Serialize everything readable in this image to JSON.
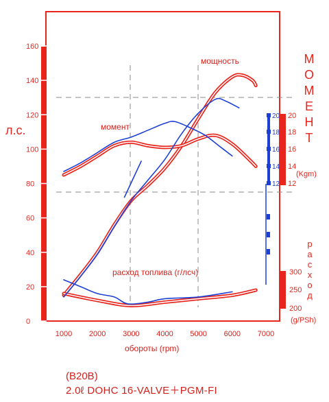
{
  "chart_data": {
    "type": "line",
    "x_label": "обороты (rpm)",
    "x_ticks": [
      1000,
      2000,
      3000,
      4000,
      5000,
      6000,
      7000
    ],
    "xlim": [
      500,
      7500
    ],
    "left_axis": {
      "label": "л.с.",
      "ticks": [
        0,
        20,
        40,
        60,
        80,
        100,
        120,
        140,
        160
      ],
      "ylim": [
        0,
        175
      ]
    },
    "torque_axis": {
      "label_letters": [
        "М",
        "О",
        "М",
        "Е",
        "Н",
        "Т"
      ],
      "unit": "(Kgm)",
      "ticks": [
        12,
        14,
        16,
        18,
        20
      ]
    },
    "consumption_axis": {
      "label_letters": [
        "р",
        "а",
        "с",
        "х",
        "о",
        "д"
      ],
      "unit": "(g/PSh)",
      "ticks": [
        200,
        250,
        300
      ]
    },
    "annotations": {
      "power": "мощность",
      "torque": "момент",
      "consumption": "расход топлива (г/лсч)"
    },
    "series": [
      {
        "name": "мощность",
        "color": "#e8251c",
        "x": [
          1000,
          1500,
          2000,
          2500,
          3000,
          3500,
          4000,
          4500,
          5000,
          5500,
          6000,
          6300,
          6600,
          6700
        ],
        "y": [
          15,
          27,
          40,
          56,
          70,
          79,
          89,
          102,
          118,
          133,
          142,
          143,
          140,
          137
        ]
      },
      {
        "name": "момент",
        "color": "#e8251c",
        "x": [
          1000,
          1500,
          2000,
          2500,
          3000,
          3500,
          4000,
          4500,
          5000,
          5500,
          6000,
          6500,
          6700
        ],
        "y": [
          85,
          90,
          96,
          102,
          104,
          102,
          101,
          102,
          106,
          108,
          103,
          94,
          90
        ]
      },
      {
        "name": "расход топлива (г/лсч)",
        "color": "#e8251c",
        "x": [
          1000,
          2000,
          3000,
          4000,
          5000,
          6000,
          6700
        ],
        "y": [
          16,
          12,
          9,
          11,
          13,
          15,
          18
        ]
      },
      {
        "name": "мощность (blue)",
        "color": "#1c3fd6",
        "x": [
          1000,
          1500,
          2000,
          2500,
          3000,
          3500,
          4000,
          4500,
          5000,
          5500,
          5800,
          6200
        ],
        "y": [
          14,
          26,
          39,
          55,
          70,
          82,
          94,
          109,
          121,
          129,
          128,
          124
        ]
      },
      {
        "name": "момент (blue)",
        "color": "#1c3fd6",
        "x": [
          1000,
          1500,
          2000,
          2500,
          3000,
          3500,
          4000,
          4300,
          4800,
          5200,
          5600,
          6000
        ],
        "y": [
          87,
          92,
          98,
          104,
          107,
          111,
          115,
          116,
          112,
          108,
          102,
          96
        ]
      },
      {
        "name": "расход (blue)",
        "color": "#1c3fd6",
        "x": [
          1000,
          1500,
          2000,
          2500,
          2900,
          3500,
          4000,
          5000,
          6000
        ],
        "y": [
          24,
          20,
          16,
          14,
          10,
          11,
          13,
          14,
          17
        ]
      },
      {
        "name": "blue line near torque axis",
        "color": "#1c3fd6",
        "x": [
          2800,
          3300
        ],
        "y": [
          72,
          93
        ]
      }
    ]
  },
  "captions": {
    "model": "(B20B)",
    "spec": "2.0ℓ  DOHC 16-VALVE＋PGM-FI"
  }
}
